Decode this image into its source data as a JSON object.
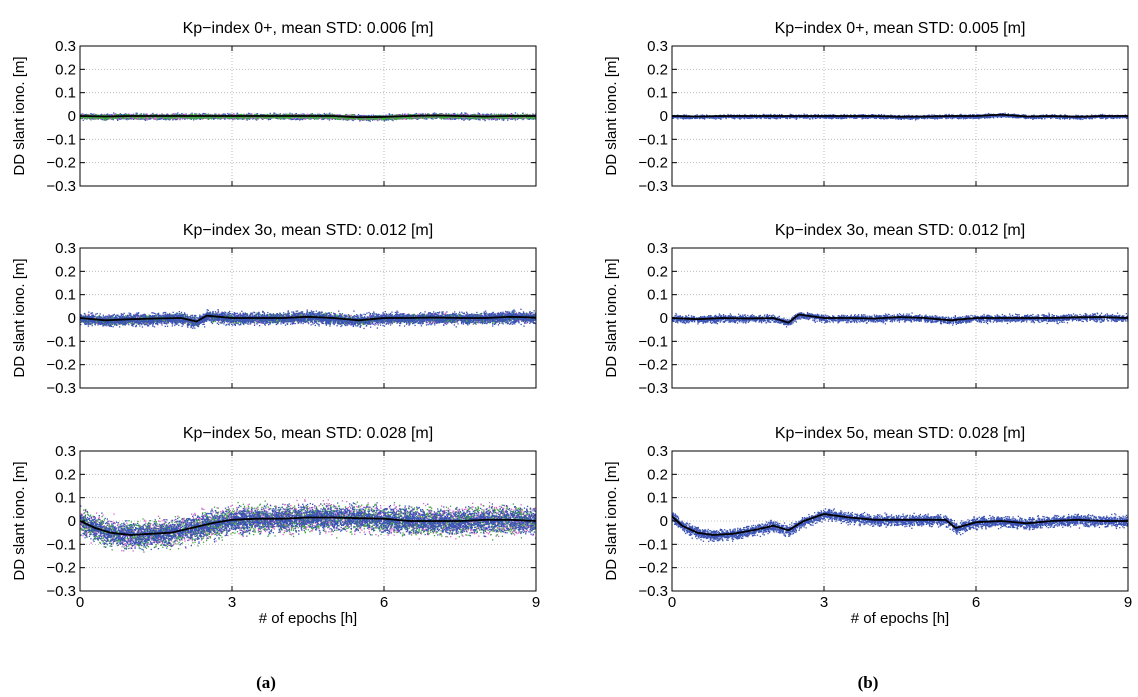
{
  "captions": [
    "(a)",
    "(b)"
  ],
  "colors": {
    "blue": "#3a53b4",
    "magenta": "#d364c8",
    "green": "#3fa83f",
    "black": "#000000",
    "grid": "#b0b0b0"
  },
  "chart_data": [
    {
      "id": "a1",
      "column": 0,
      "row": 0,
      "type": "scatter",
      "title": "Kp−index 0+, mean STD: 0.006 [m]",
      "ylabel": "DD slant iono. [m]",
      "xlabel": "",
      "xlim": [
        0,
        9
      ],
      "ylim": [
        -0.3,
        0.3
      ],
      "xticks": [
        0,
        3,
        6,
        9
      ],
      "show_xtick_labels": false,
      "yticks": [
        0.3,
        0.2,
        0.1,
        0,
        -0.1,
        -0.2,
        -0.3
      ],
      "ytick_labels": [
        "0.3",
        "0.2",
        "0.1",
        "0",
        "−0.1",
        "−0.2",
        "−0.3"
      ],
      "grid": true,
      "series": [
        {
          "color": "blue",
          "amp": 0.009,
          "density": 4200,
          "style": "points"
        },
        {
          "color": "magenta",
          "amp": 0.007,
          "density": 2000,
          "style": "points"
        },
        {
          "color": "green",
          "amp": 0.007,
          "density": 2000,
          "style": "points"
        },
        {
          "color": "black",
          "style": "line",
          "x": [
            0,
            0.5,
            1,
            1.5,
            2,
            2.5,
            3,
            3.5,
            4,
            4.5,
            5,
            5.5,
            6,
            6.5,
            7,
            7.5,
            8,
            8.5,
            9
          ],
          "y": [
            0.0,
            -0.002,
            0.0,
            0.0,
            0.0,
            0.0,
            0.0,
            0.0,
            0.0,
            0.0,
            0.0,
            -0.005,
            -0.004,
            0.0,
            0.002,
            0.0,
            -0.002,
            0.0,
            0.0
          ]
        }
      ]
    },
    {
      "id": "b1",
      "column": 1,
      "row": 0,
      "type": "scatter",
      "title": "Kp−index 0+, mean STD: 0.005 [m]",
      "ylabel": "DD slant iono. [m]",
      "xlabel": "",
      "xlim": [
        0,
        9
      ],
      "ylim": [
        -0.3,
        0.3
      ],
      "xticks": [
        0,
        3,
        6,
        9
      ],
      "show_xtick_labels": false,
      "yticks": [
        0.3,
        0.2,
        0.1,
        0,
        -0.1,
        -0.2,
        -0.3
      ],
      "ytick_labels": [
        "0.3",
        "0.2",
        "0.1",
        "0",
        "−0.1",
        "−0.2",
        "−0.3"
      ],
      "grid": true,
      "series": [
        {
          "color": "blue",
          "amp": 0.006,
          "density": 3500,
          "style": "points"
        },
        {
          "color": "black",
          "style": "line",
          "x": [
            0,
            0.5,
            1,
            1.5,
            2,
            2.5,
            3,
            3.5,
            4,
            4.5,
            5,
            5.5,
            6,
            6.5,
            7,
            7.5,
            8,
            8.5,
            9
          ],
          "y": [
            0.0,
            -0.002,
            0.0,
            0.0,
            0.0,
            0.0,
            0.0,
            0.0,
            0.0,
            -0.003,
            -0.002,
            0.0,
            0.0,
            0.006,
            -0.002,
            0.0,
            -0.003,
            0.0,
            0.0
          ]
        }
      ]
    },
    {
      "id": "a2",
      "column": 0,
      "row": 1,
      "type": "scatter",
      "title": "Kp−index 3o, mean STD: 0.012 [m]",
      "ylabel": "DD slant iono. [m]",
      "xlabel": "",
      "xlim": [
        0,
        9
      ],
      "ylim": [
        -0.3,
        0.3
      ],
      "xticks": [
        0,
        3,
        6,
        9
      ],
      "show_xtick_labels": false,
      "yticks": [
        0.3,
        0.2,
        0.1,
        0,
        -0.1,
        -0.2,
        -0.3
      ],
      "ytick_labels": [
        "0.3",
        "0.2",
        "0.1",
        "0",
        "−0.1",
        "−0.2",
        "−0.3"
      ],
      "grid": true,
      "series": [
        {
          "color": "magenta",
          "amp": 0.014,
          "density": 2600,
          "style": "points"
        },
        {
          "color": "green",
          "amp": 0.014,
          "density": 2600,
          "style": "points"
        },
        {
          "color": "blue",
          "amp": 0.02,
          "density": 4800,
          "style": "points"
        },
        {
          "color": "black",
          "style": "line",
          "x": [
            0,
            0.5,
            1,
            1.5,
            2,
            2.3,
            2.5,
            3,
            3.5,
            4,
            4.5,
            5,
            5.5,
            6,
            6.5,
            7,
            7.5,
            8,
            8.5,
            9
          ],
          "y": [
            0.0,
            -0.01,
            -0.005,
            -0.002,
            0.0,
            -0.015,
            0.01,
            0.0,
            0.0,
            0.0,
            0.005,
            0.0,
            -0.01,
            0.0,
            0.0,
            0.002,
            0.0,
            0.0,
            0.005,
            0.002
          ]
        }
      ]
    },
    {
      "id": "b2",
      "column": 1,
      "row": 1,
      "type": "scatter",
      "title": "Kp−index 3o, mean STD: 0.012 [m]",
      "ylabel": "DD slant iono. [m]",
      "xlabel": "",
      "xlim": [
        0,
        9
      ],
      "ylim": [
        -0.3,
        0.3
      ],
      "xticks": [
        0,
        3,
        6,
        9
      ],
      "show_xtick_labels": false,
      "yticks": [
        0.3,
        0.2,
        0.1,
        0,
        -0.1,
        -0.2,
        -0.3
      ],
      "ytick_labels": [
        "0.3",
        "0.2",
        "0.1",
        "0",
        "−0.1",
        "−0.2",
        "−0.3"
      ],
      "grid": true,
      "series": [
        {
          "color": "blue",
          "amp": 0.012,
          "density": 3600,
          "style": "points"
        },
        {
          "color": "black",
          "style": "line",
          "x": [
            0,
            0.5,
            1,
            1.5,
            2,
            2.3,
            2.5,
            3,
            3.5,
            4,
            4.5,
            5,
            5.5,
            6,
            6.5,
            7,
            7.5,
            8,
            8.5,
            9
          ],
          "y": [
            0.0,
            -0.005,
            0.0,
            -0.002,
            0.0,
            -0.02,
            0.015,
            0.0,
            0.0,
            -0.002,
            0.004,
            0.0,
            -0.01,
            0.0,
            0.0,
            0.0,
            0.0,
            0.003,
            0.004,
            0.0
          ]
        }
      ]
    },
    {
      "id": "a3",
      "column": 0,
      "row": 2,
      "type": "scatter",
      "title": "Kp−index 5o, mean STD: 0.028 [m]",
      "ylabel": "DD slant iono. [m]",
      "xlabel": "# of epochs [h]",
      "xlim": [
        0,
        9
      ],
      "ylim": [
        -0.3,
        0.3
      ],
      "xticks": [
        0,
        3,
        6,
        9
      ],
      "show_xtick_labels": true,
      "yticks": [
        0.3,
        0.2,
        0.1,
        0,
        -0.1,
        -0.2,
        -0.3
      ],
      "ytick_labels": [
        "0.3",
        "0.2",
        "0.1",
        "0",
        "−0.1",
        "−0.2",
        "−0.3"
      ],
      "grid": true,
      "series": [
        {
          "color": "magenta",
          "amp": 0.045,
          "density": 2800,
          "style": "points"
        },
        {
          "color": "green",
          "amp": 0.045,
          "density": 2800,
          "style": "points"
        },
        {
          "color": "blue",
          "amp": 0.04,
          "density": 5500,
          "style": "points"
        },
        {
          "color": "black",
          "style": "line",
          "x": [
            0,
            0.3,
            0.6,
            1.0,
            1.4,
            1.8,
            2.2,
            2.6,
            3.0,
            3.5,
            4.0,
            4.5,
            5.0,
            5.5,
            6.0,
            6.5,
            7.0,
            7.5,
            8.0,
            8.5,
            9.0
          ],
          "y": [
            0.0,
            -0.03,
            -0.05,
            -0.06,
            -0.055,
            -0.05,
            -0.03,
            -0.01,
            0.005,
            0.01,
            0.01,
            0.015,
            0.015,
            0.012,
            0.01,
            0.0,
            0.0,
            0.0,
            0.005,
            0.005,
            0.0
          ]
        }
      ]
    },
    {
      "id": "b3",
      "column": 1,
      "row": 2,
      "type": "scatter",
      "title": "Kp−index 5o, mean STD: 0.028 [m]",
      "ylabel": "DD slant iono. [m]",
      "xlabel": "# of epochs [h]",
      "xlim": [
        0,
        9
      ],
      "ylim": [
        -0.3,
        0.3
      ],
      "xticks": [
        0,
        3,
        6,
        9
      ],
      "show_xtick_labels": true,
      "yticks": [
        0.3,
        0.2,
        0.1,
        0,
        -0.1,
        -0.2,
        -0.3
      ],
      "ytick_labels": [
        "0.3",
        "0.2",
        "0.1",
        "0",
        "−0.1",
        "−0.2",
        "−0.3"
      ],
      "grid": true,
      "series": [
        {
          "color": "blue",
          "amp": 0.018,
          "density": 4800,
          "style": "points"
        },
        {
          "color": "black",
          "style": "line",
          "x": [
            0,
            0.2,
            0.5,
            0.8,
            1.2,
            1.6,
            2.0,
            2.3,
            2.6,
            3.0,
            3.5,
            4.0,
            4.5,
            5.0,
            5.4,
            5.6,
            6.0,
            6.5,
            7.0,
            7.5,
            8.0,
            8.5,
            9.0
          ],
          "y": [
            0.02,
            -0.02,
            -0.05,
            -0.06,
            -0.055,
            -0.04,
            -0.02,
            -0.04,
            0.0,
            0.03,
            0.015,
            0.005,
            0.005,
            0.005,
            0.005,
            -0.03,
            -0.005,
            0.0,
            -0.01,
            0.0,
            0.005,
            0.0,
            0.0
          ]
        }
      ]
    }
  ]
}
